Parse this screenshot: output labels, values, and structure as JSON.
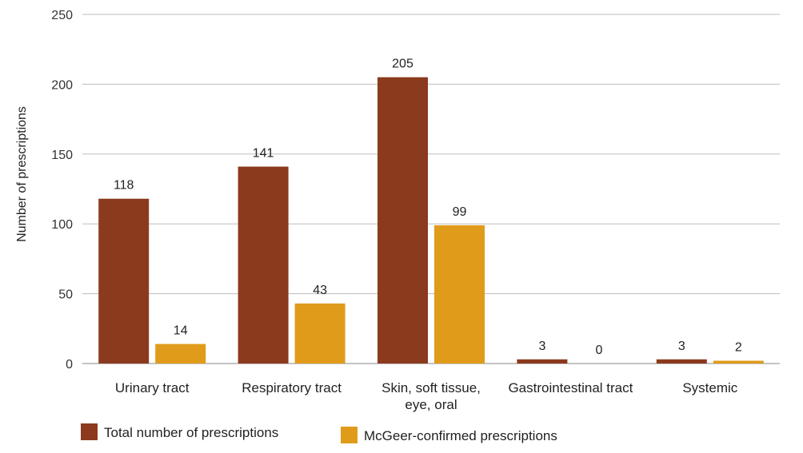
{
  "chart_data": {
    "type": "bar",
    "title": "",
    "xlabel": "",
    "ylabel": "Number of prescriptions",
    "ylim": [
      0,
      250
    ],
    "yticks": [
      0,
      50,
      100,
      150,
      200,
      250
    ],
    "grid": true,
    "legend_position": "bottom-left",
    "categories": [
      "Urinary tract",
      "Respiratory tract",
      "Skin, soft tissue, eye, oral",
      "Gastrointestinal tract",
      "Systemic"
    ],
    "series": [
      {
        "name": "Total number of prescriptions",
        "color": "#8B3A1E",
        "values": [
          118,
          141,
          205,
          3,
          3
        ]
      },
      {
        "name": "McGeer-confirmed prescriptions",
        "color": "#E09B1B",
        "values": [
          14,
          43,
          99,
          0,
          2
        ]
      }
    ]
  }
}
